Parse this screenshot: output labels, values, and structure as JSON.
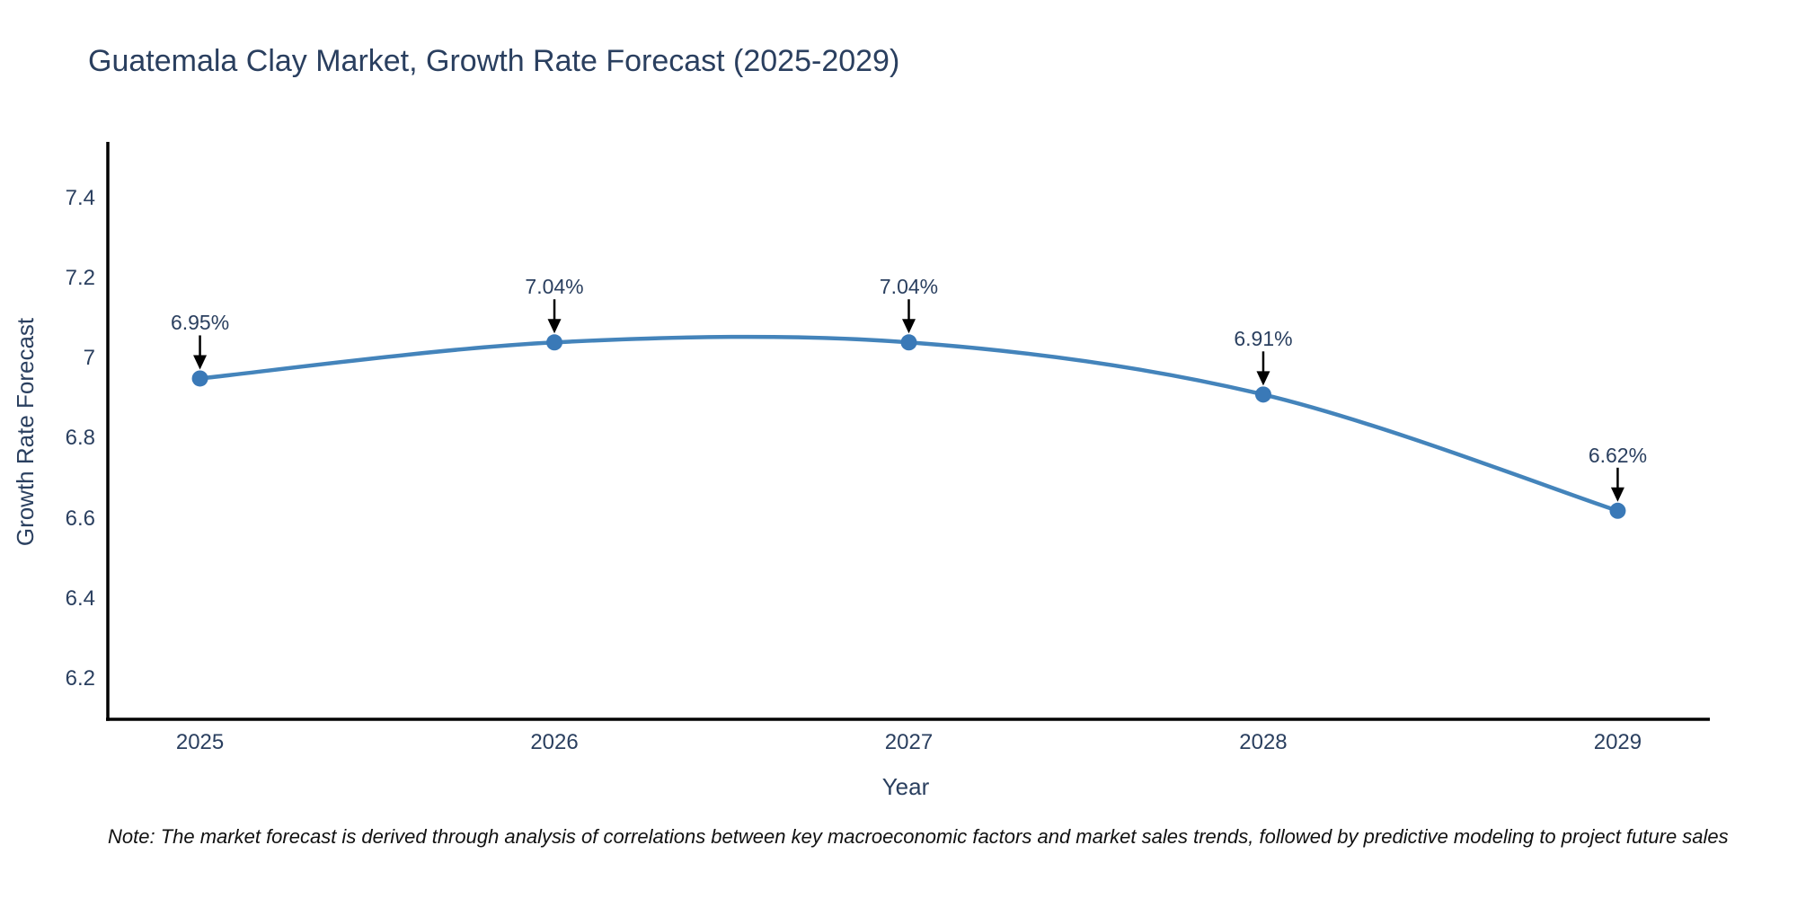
{
  "chart_data": {
    "type": "line",
    "title": "Guatemala Clay Market, Growth Rate Forecast (2025-2029)",
    "xlabel": "Year",
    "ylabel": "Growth Rate Forecast",
    "x": [
      2025,
      2026,
      2027,
      2028,
      2029
    ],
    "y": [
      6.95,
      7.04,
      7.04,
      6.91,
      6.62
    ],
    "point_labels": [
      "6.95%",
      "7.04%",
      "7.04%",
      "6.91%",
      "6.62%"
    ],
    "xtick_labels": [
      "2025",
      "2026",
      "2027",
      "2028",
      "2029"
    ],
    "yticks": [
      6.2,
      6.4,
      6.6,
      6.8,
      7,
      7.2,
      7.4
    ],
    "ytick_labels": [
      "6.2",
      "6.4",
      "6.6",
      "6.8",
      "7",
      "7.2",
      "7.4"
    ],
    "xlim": [
      2024.74,
      2029.26
    ],
    "ylim": [
      6.1,
      7.54
    ],
    "grid": false,
    "legend": false,
    "line_shape": "spline",
    "annotations_have_arrows": true,
    "colors": {
      "line": "#4484bb",
      "marker": "#3a79b7",
      "axis": "#000000",
      "text": "#2a3f5f",
      "arrow": "#000000",
      "note": "#111111",
      "background": "#ffffff"
    }
  },
  "note": {
    "text": "Note: The market forecast is derived through analysis of correlations between key macroeconomic factors and market sales trends, followed by predictive modeling to project future sales"
  }
}
